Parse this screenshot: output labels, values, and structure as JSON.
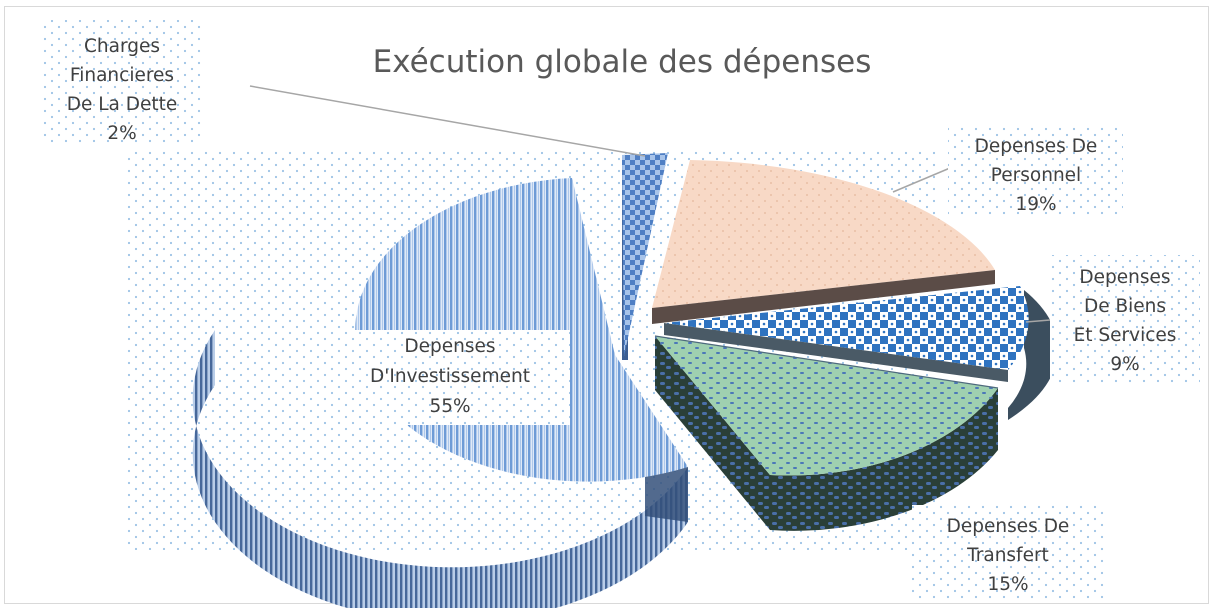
{
  "chart_data": {
    "type": "pie",
    "variant": "3d-exploded",
    "title": "Exécution globale des dépenses",
    "slices": [
      {
        "label": [
          "Charges",
          "Financieres",
          "De La Dette"
        ],
        "percent_label": "2%",
        "value": 2,
        "color": "#5b8bd0"
      },
      {
        "label": [
          "Depenses De",
          "Personnel"
        ],
        "percent_label": "19%",
        "value": 19,
        "color": "#f8d8c4"
      },
      {
        "label": [
          "Depenses",
          "De Biens",
          "Et Services"
        ],
        "percent_label": "9%",
        "value": 9,
        "color": "#2e75b6"
      },
      {
        "label": [
          "Depenses De",
          "Transfert"
        ],
        "percent_label": "15%",
        "value": 15,
        "color": "#9cc7a4"
      },
      {
        "label": [
          "Depenses",
          "D'Investissement"
        ],
        "percent_label": "55%",
        "value": 55,
        "color": "#7fa8dc"
      }
    ],
    "legend": "none",
    "data_labels": "category-and-percent"
  }
}
